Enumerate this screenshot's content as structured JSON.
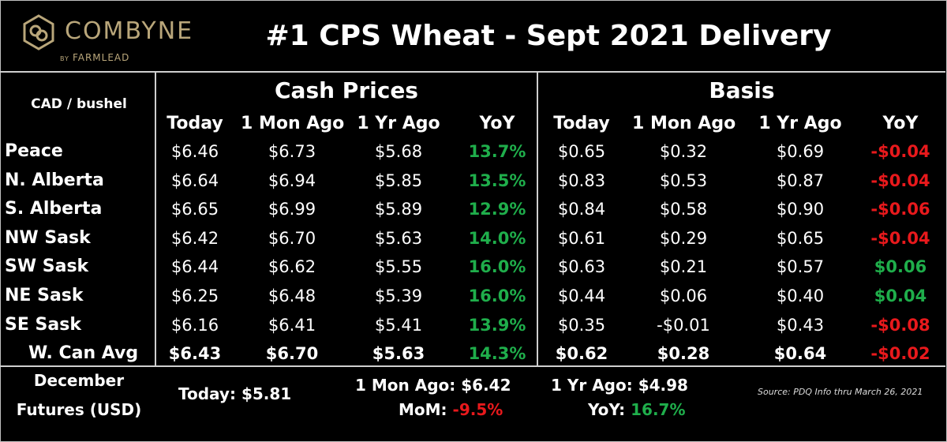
{
  "logo": {
    "name": "COMBYNE",
    "by": "BY",
    "sub": "FARMLEAD"
  },
  "title": "#1 CPS Wheat - Sept 2021 Delivery",
  "chart_data": {
    "type": "table",
    "unit_label": "CAD / bushel",
    "groups": [
      "Cash Prices",
      "Basis"
    ],
    "columns": [
      "Today",
      "1 Mon Ago",
      "1 Yr Ago",
      "YoY"
    ],
    "rows": [
      {
        "region": "Peace",
        "cash": [
          "$6.46",
          "$6.73",
          "$5.68",
          "13.7%"
        ],
        "basis": [
          "$0.65",
          "$0.32",
          "$0.69",
          "-$0.04"
        ]
      },
      {
        "region": "N. Alberta",
        "cash": [
          "$6.64",
          "$6.94",
          "$5.85",
          "13.5%"
        ],
        "basis": [
          "$0.83",
          "$0.53",
          "$0.87",
          "-$0.04"
        ]
      },
      {
        "region": "S. Alberta",
        "cash": [
          "$6.65",
          "$6.99",
          "$5.89",
          "12.9%"
        ],
        "basis": [
          "$0.84",
          "$0.58",
          "$0.90",
          "-$0.06"
        ]
      },
      {
        "region": "NW Sask",
        "cash": [
          "$6.42",
          "$6.70",
          "$5.63",
          "14.0%"
        ],
        "basis": [
          "$0.61",
          "$0.29",
          "$0.65",
          "-$0.04"
        ]
      },
      {
        "region": "SW Sask",
        "cash": [
          "$6.44",
          "$6.62",
          "$5.55",
          "16.0%"
        ],
        "basis": [
          "$0.63",
          "$0.21",
          "$0.57",
          "$0.06"
        ]
      },
      {
        "region": "NE Sask",
        "cash": [
          "$6.25",
          "$6.48",
          "$5.39",
          "16.0%"
        ],
        "basis": [
          "$0.44",
          "$0.06",
          "$0.40",
          "$0.04"
        ]
      },
      {
        "region": "SE Sask",
        "cash": [
          "$6.16",
          "$6.41",
          "$5.41",
          "13.9%"
        ],
        "basis": [
          "$0.35",
          "-$0.01",
          "$0.43",
          "-$0.08"
        ]
      },
      {
        "region": "W. Can Avg",
        "cash": [
          "$6.43",
          "$6.70",
          "$5.63",
          "14.3%"
        ],
        "basis": [
          "$0.62",
          "$0.28",
          "$0.64",
          "-$0.02"
        ],
        "bold": true
      }
    ],
    "colors": {
      "positive": "#1fae4b",
      "negative": "#e8191c"
    }
  },
  "futures": {
    "label_line1": "December",
    "label_line2": "Futures (USD)",
    "today_label": "Today:",
    "today_value": "$5.81",
    "mon_label": "1 Mon Ago:",
    "mon_value": "$6.42",
    "mom_label": "MoM:",
    "mom_value": "-9.5%",
    "yr_label": "1 Yr Ago:",
    "yr_value": "$4.98",
    "yoy_label": "YoY:",
    "yoy_value": "16.7%"
  },
  "source": "Source: PDQ Info thru March 26, 2021"
}
